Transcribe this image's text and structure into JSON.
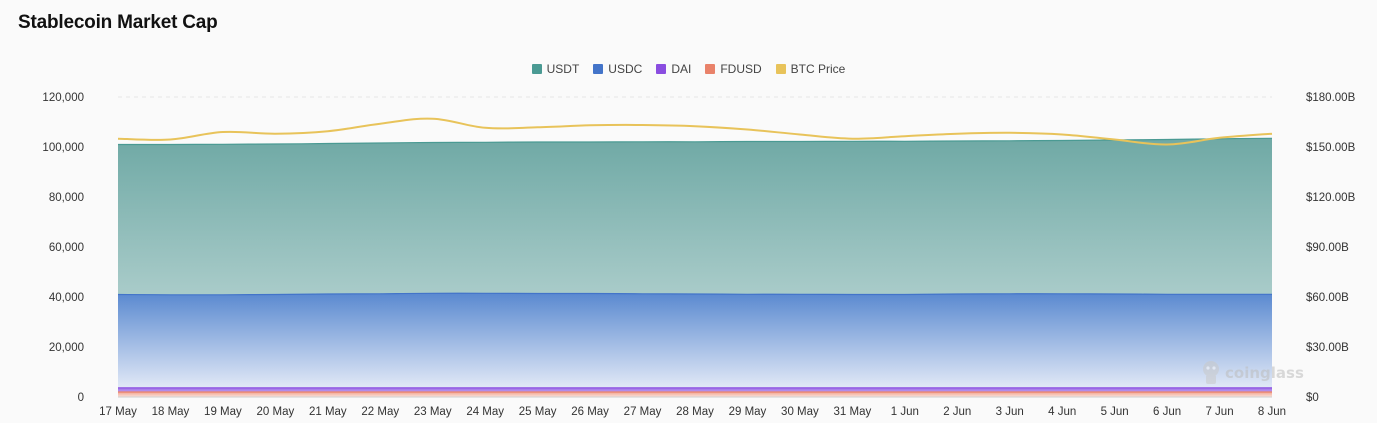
{
  "title": "Stablecoin Market Cap",
  "watermark": "coinglass",
  "colors": {
    "usdt": "#4a9a93",
    "usdc": "#4374c9",
    "dai": "#8a4de0",
    "fdusd": "#e9826a",
    "btc": "#e8c35a"
  },
  "chart_data": {
    "type": "area",
    "title": "Stablecoin Market Cap",
    "x": [
      "17 May",
      "18 May",
      "19 May",
      "20 May",
      "21 May",
      "22 May",
      "23 May",
      "24 May",
      "25 May",
      "26 May",
      "27 May",
      "28 May",
      "29 May",
      "30 May",
      "31 May",
      "1 Jun",
      "2 Jun",
      "3 Jun",
      "4 Jun",
      "5 Jun",
      "6 Jun",
      "7 Jun",
      "8 Jun"
    ],
    "series": [
      {
        "name": "USDT",
        "key": "usdt",
        "stack": true,
        "values": [
          101000,
          101000,
          101100,
          101200,
          101400,
          101600,
          101800,
          101900,
          102000,
          102000,
          102100,
          102100,
          102200,
          102200,
          102300,
          102300,
          102400,
          102500,
          102600,
          102800,
          103000,
          103300,
          103500
        ]
      },
      {
        "name": "USDC",
        "key": "usdc",
        "stack": true,
        "values": [
          41000,
          40900,
          40900,
          41000,
          41200,
          41300,
          41500,
          41500,
          41400,
          41400,
          41300,
          41200,
          41100,
          41100,
          41000,
          41000,
          41200,
          41300,
          41300,
          41200,
          41100,
          41100,
          41100
        ]
      },
      {
        "name": "DAI",
        "key": "dai",
        "stack": true,
        "values": [
          3700,
          3700,
          3700,
          3700,
          3700,
          3700,
          3700,
          3700,
          3700,
          3700,
          3700,
          3700,
          3700,
          3700,
          3700,
          3700,
          3700,
          3700,
          3700,
          3700,
          3700,
          3700,
          3700
        ]
      },
      {
        "name": "FDUSD",
        "key": "fdusd",
        "stack": true,
        "values": [
          2000,
          2000,
          2000,
          2000,
          2000,
          2000,
          2000,
          2000,
          2000,
          2000,
          2000,
          2000,
          2000,
          2000,
          2000,
          2000,
          2000,
          2000,
          2000,
          2000,
          2000,
          2000,
          2000
        ]
      },
      {
        "name": "BTC Price",
        "key": "btc",
        "stack": false,
        "axis": "right",
        "values": [
          155000,
          154500,
          159000,
          158000,
          159500,
          164000,
          167000,
          161500,
          161800,
          163000,
          163200,
          162500,
          160500,
          157500,
          155000,
          156500,
          158000,
          158500,
          157500,
          154500,
          151500,
          155500,
          158000
        ]
      }
    ],
    "y_left": {
      "min": 0,
      "max": 120000,
      "ticks": [
        0,
        20000,
        40000,
        60000,
        80000,
        100000,
        120000
      ],
      "tick_labels": [
        "0",
        "20,000",
        "40,000",
        "60,000",
        "80,000",
        "100,000",
        "120,000"
      ]
    },
    "y_right": {
      "min": 0,
      "max": 180000,
      "tick_labels": [
        "$0",
        "$30.00B",
        "$60.00B",
        "$90.00B",
        "$120.00B",
        "$150.00B",
        "$180.00B"
      ]
    },
    "grid": true,
    "legend_position": "top-center"
  }
}
